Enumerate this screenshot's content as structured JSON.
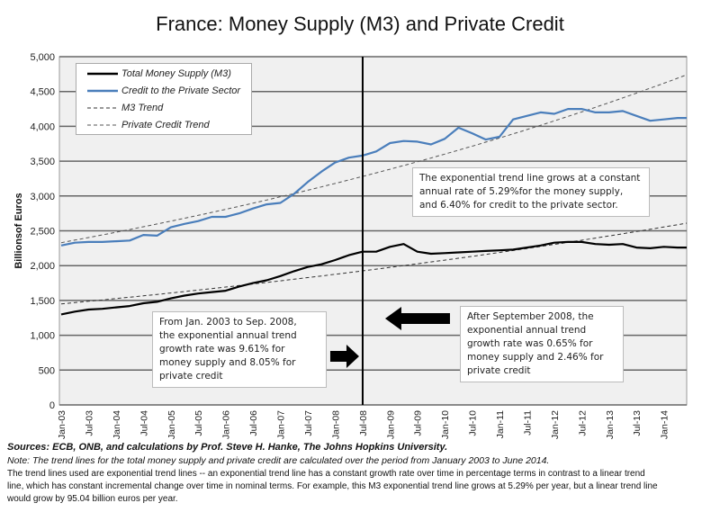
{
  "chart_data": {
    "type": "line",
    "title": "France: Money Supply (M3) and Private Credit",
    "ylabel": "Billionsof Euros",
    "xlabel": "",
    "ylim": [
      0,
      5000
    ],
    "yticks": [
      "0",
      "500",
      "1,000",
      "1,500",
      "2,000",
      "2,500",
      "3,000",
      "3,500",
      "4,000",
      "4,500",
      "5,000"
    ],
    "xticks": [
      "Jan-03",
      "Jul-03",
      "Jan-04",
      "Jul-04",
      "Jan-05",
      "Jul-05",
      "Jan-06",
      "Jul-06",
      "Jan-07",
      "Jul-07",
      "Jan-08",
      "Jul-08",
      "Jan-09",
      "Jul-09",
      "Jan-10",
      "Jul-10",
      "Jan-11",
      "Jul-11",
      "Jan-12",
      "Jul-12",
      "Jan-13",
      "Jul-13",
      "Jan-14"
    ],
    "x": [
      "2003-01",
      "2003-04",
      "2003-07",
      "2003-10",
      "2004-01",
      "2004-04",
      "2004-07",
      "2004-10",
      "2005-01",
      "2005-04",
      "2005-07",
      "2005-10",
      "2006-01",
      "2006-04",
      "2006-07",
      "2006-10",
      "2007-01",
      "2007-04",
      "2007-07",
      "2007-10",
      "2008-01",
      "2008-04",
      "2008-07",
      "2008-10",
      "2009-01",
      "2009-04",
      "2009-07",
      "2009-10",
      "2010-01",
      "2010-04",
      "2010-07",
      "2010-10",
      "2011-01",
      "2011-04",
      "2011-07",
      "2011-10",
      "2012-01",
      "2012-04",
      "2012-07",
      "2012-10",
      "2013-01",
      "2013-04",
      "2013-07",
      "2013-10",
      "2014-01",
      "2014-04",
      "2014-06"
    ],
    "grid": true,
    "legend_position": "top-left",
    "series": [
      {
        "name": "Total Money Supply (M3)",
        "color": "#000000",
        "style": "solid",
        "values": [
          1300,
          1340,
          1370,
          1380,
          1400,
          1420,
          1460,
          1480,
          1530,
          1570,
          1600,
          1620,
          1640,
          1700,
          1750,
          1790,
          1850,
          1920,
          1980,
          2020,
          2080,
          2150,
          2200,
          2200,
          2270,
          2310,
          2200,
          2170,
          2180,
          2190,
          2200,
          2210,
          2220,
          2230,
          2260,
          2290,
          2330,
          2340,
          2340,
          2310,
          2300,
          2310,
          2260,
          2250,
          2270,
          2260,
          2260
        ]
      },
      {
        "name": "Credit to the Private Sector",
        "color": "#4a7ebb",
        "style": "solid",
        "values": [
          2290,
          2330,
          2340,
          2340,
          2350,
          2360,
          2440,
          2430,
          2550,
          2600,
          2640,
          2700,
          2700,
          2750,
          2820,
          2880,
          2900,
          3030,
          3200,
          3350,
          3480,
          3550,
          3580,
          3640,
          3760,
          3790,
          3780,
          3740,
          3820,
          3980,
          3900,
          3810,
          3850,
          4100,
          4150,
          4200,
          4180,
          4250,
          4250,
          4200,
          4200,
          4220,
          4150,
          4080,
          4100,
          4120,
          4120
        ]
      },
      {
        "name": "M3 Trend",
        "color": "#333333",
        "style": "dashed",
        "start": [
          "2003-01",
          1450
        ],
        "end": [
          "2014-06",
          2610
        ]
      },
      {
        "name": "Private Credit Trend",
        "color": "#555555",
        "style": "dashed",
        "start": [
          "2003-01",
          2330
        ],
        "end": [
          "2014-06",
          4740
        ]
      }
    ],
    "vertical_marker": "2008-09",
    "annotations": {
      "trend_rate": "The exponential trend line grows at a constant\nannual rate of 5.29%for the money supply,\nand 6.40% for credit to the private sector.",
      "before": "From Jan. 2003 to Sep. 2008,\nthe exponential annual trend\n growth rate was  9.61% for\nmoney supply and  8.05% for\nprivate credit",
      "after": "After September 2008, the\nexponential annual trend\n growth rate was 0.65% for\nmoney supply and  2.46% for\nprivate credit"
    }
  },
  "footer": {
    "sources": "Sources: ECB, ONB, and calculations by Prof. Steve H. Hanke, The Johns Hopkins University.",
    "note": "Note: The trend lines for the total money supply and private credit are calculated over the period from January 2003 to June 2014.",
    "line1": "The trend lines used are exponential trend lines -- an exponential trend line has a constant growth rate over time in percentage terms in contrast to a linear trend",
    "line2": "line, which has constant incremental change over time in nominal terms. For example, this M3 exponential trend line grows at 5.29% per year, but a linear trend line",
    "line3": "would grow by  95.04  billion euros per year."
  }
}
